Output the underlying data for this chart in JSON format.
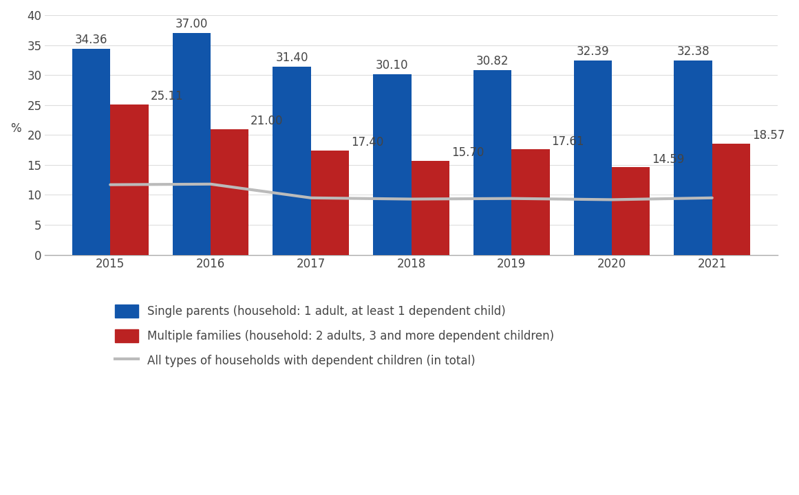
{
  "years": [
    2015,
    2016,
    2017,
    2018,
    2019,
    2020,
    2021
  ],
  "single_parents": [
    34.36,
    37.0,
    31.4,
    30.1,
    30.82,
    32.39,
    32.38
  ],
  "multiple_families": [
    25.11,
    21.0,
    17.4,
    15.7,
    17.61,
    14.59,
    18.57
  ],
  "all_households": [
    11.7,
    11.8,
    9.5,
    9.3,
    9.4,
    9.2,
    9.5
  ],
  "bar_color_blue": "#1155aa",
  "bar_color_red": "#bb2222",
  "line_color": "#bbbbbb",
  "ylabel": "%",
  "ylim": [
    0,
    40
  ],
  "yticks": [
    0,
    5,
    10,
    15,
    20,
    25,
    30,
    35,
    40
  ],
  "legend_blue": "Single parents (household: 1 adult, at least 1 dependent child)",
  "legend_red": "Multiple families (household: 2 adults, 3 and more dependent children)",
  "legend_line": "All types of households with dependent children (in total)",
  "bar_width": 0.38,
  "background_color": "#ffffff",
  "text_color": "#444444",
  "font_size_ticks": 12,
  "font_size_labels": 12,
  "font_size_legend": 12
}
